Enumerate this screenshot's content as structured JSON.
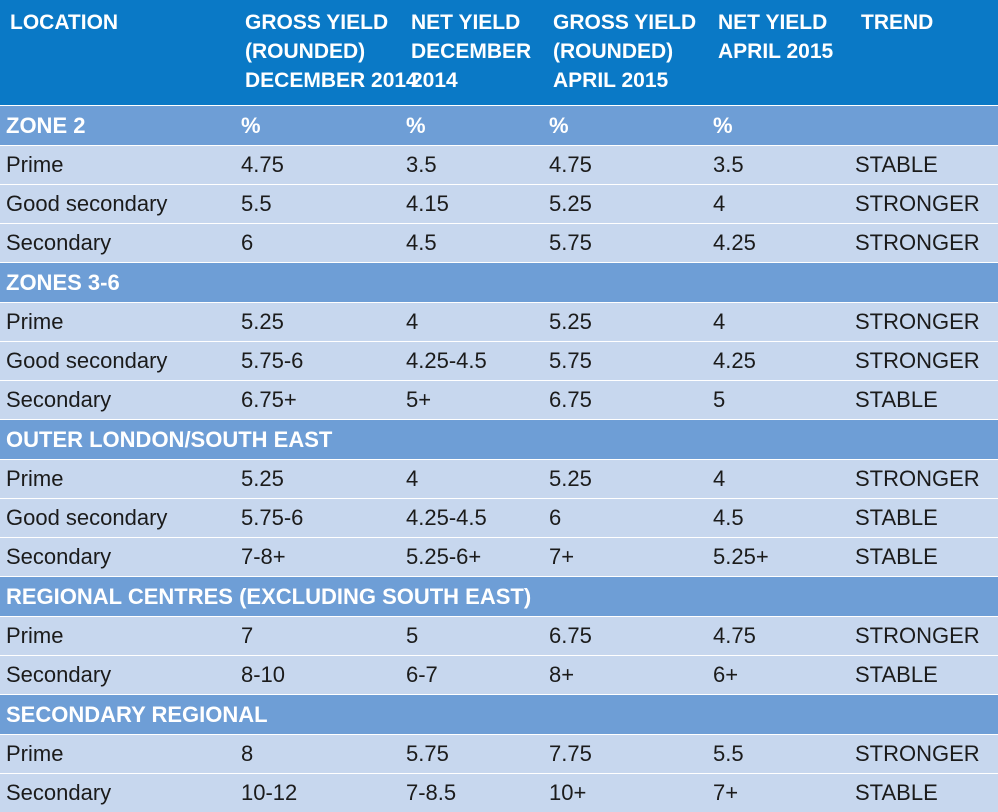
{
  "chart_data": {
    "type": "table",
    "columns": [
      "LOCATION",
      "GROSS YIELD\n(ROUNDED)\nDECEMBER 2014",
      "NET YIELD\nDECEMBER\n2014",
      "GROSS YIELD\n(ROUNDED)\nAPRIL 2015",
      "NET YIELD\nAPRIL 2015",
      "TREND"
    ],
    "sections": [
      {
        "name": "ZONE 2",
        "units": [
          "%",
          "%",
          "%",
          "%"
        ],
        "rows": [
          [
            "Prime",
            "4.75",
            "3.5",
            "4.75",
            "3.5",
            "STABLE"
          ],
          [
            "Good secondary",
            "5.5",
            "4.15",
            "5.25",
            "4",
            "STRONGER"
          ],
          [
            "Secondary",
            "6",
            "4.5",
            "5.75",
            "4.25",
            "STRONGER"
          ]
        ]
      },
      {
        "name": "ZONES 3-6",
        "units": [
          "",
          "",
          "",
          ""
        ],
        "rows": [
          [
            "Prime",
            "5.25",
            "4",
            "5.25",
            "4",
            "STRONGER"
          ],
          [
            "Good secondary",
            "5.75-6",
            "4.25-4.5",
            "5.75",
            "4.25",
            "STRONGER"
          ],
          [
            "Secondary",
            "6.75+",
            "5+",
            "6.75",
            "5",
            "STABLE"
          ]
        ]
      },
      {
        "name": "OUTER LONDON/SOUTH EAST",
        "units": [
          "",
          "",
          "",
          ""
        ],
        "rows": [
          [
            "Prime",
            "5.25",
            "4",
            "5.25",
            "4",
            "STRONGER"
          ],
          [
            "Good secondary",
            "5.75-6",
            "4.25-4.5",
            "6",
            "4.5",
            "STABLE"
          ],
          [
            "Secondary",
            "7-8+",
            "5.25-6+",
            "7+",
            "5.25+",
            "STABLE"
          ]
        ]
      },
      {
        "name": "REGIONAL CENTRES (EXCLUDING SOUTH EAST)",
        "units": [
          "",
          "",
          "",
          ""
        ],
        "rows": [
          [
            "Prime",
            "7",
            "5",
            "6.75",
            "4.75",
            "STRONGER"
          ],
          [
            "Secondary",
            "8-10",
            "6-7",
            "8+",
            "6+",
            "STABLE"
          ]
        ]
      },
      {
        "name": "SECONDARY REGIONAL",
        "units": [
          "",
          "",
          "",
          ""
        ],
        "rows": [
          [
            "Prime",
            "8",
            "5.75",
            "7.75",
            "5.5",
            "STRONGER"
          ],
          [
            "Secondary",
            "10-12",
            "7-8.5",
            "10+",
            "7+",
            "STABLE"
          ]
        ]
      }
    ]
  },
  "colors": {
    "header_bg": "#0a79c6",
    "section_bg": "#6e9ed6",
    "row_bg": "#c7d7ee",
    "separator": "#ffffff",
    "header_text": "#ffffff",
    "body_text": "#1b1b1b"
  }
}
